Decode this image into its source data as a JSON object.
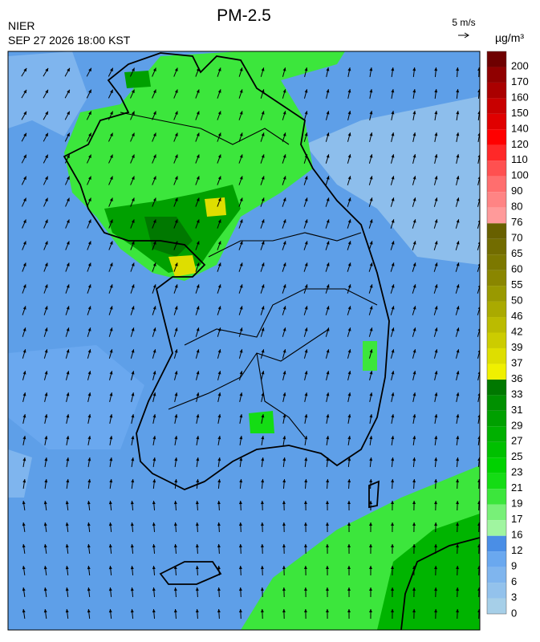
{
  "header": {
    "title": "PM-2.5",
    "source": "NIER",
    "datetime": "SEP 27 2026 18:00 KST",
    "wind_scale": "5 m/s",
    "unit": "µg/m³"
  },
  "colorbar": {
    "ticks": [
      0,
      3,
      6,
      9,
      12,
      16,
      17,
      19,
      21,
      23,
      25,
      27,
      29,
      31,
      33,
      36,
      37,
      39,
      42,
      46,
      50,
      55,
      60,
      65,
      70,
      76,
      80,
      90,
      100,
      110,
      120,
      140,
      150,
      160,
      170,
      200
    ],
    "colors": [
      "#a6cfe8",
      "#93c2ec",
      "#7fb5ee",
      "#6aa8ef",
      "#4a8ee6",
      "#a0f5a0",
      "#78f078",
      "#3ce63c",
      "#14dc14",
      "#00d200",
      "#00c000",
      "#00b000",
      "#00a000",
      "#009000",
      "#007800",
      "#f0f000",
      "#dede00",
      "#cccc00",
      "#bbbb00",
      "#aaaa00",
      "#999900",
      "#8a8600",
      "#7c7800",
      "#726c00",
      "#686000",
      "#ff9a9a",
      "#ff8484",
      "#ff6e6e",
      "#ff5050",
      "#ff2828",
      "#ff0000",
      "#e00000",
      "#c80000",
      "#aa0000",
      "#900000",
      "#6e0000"
    ]
  }
}
